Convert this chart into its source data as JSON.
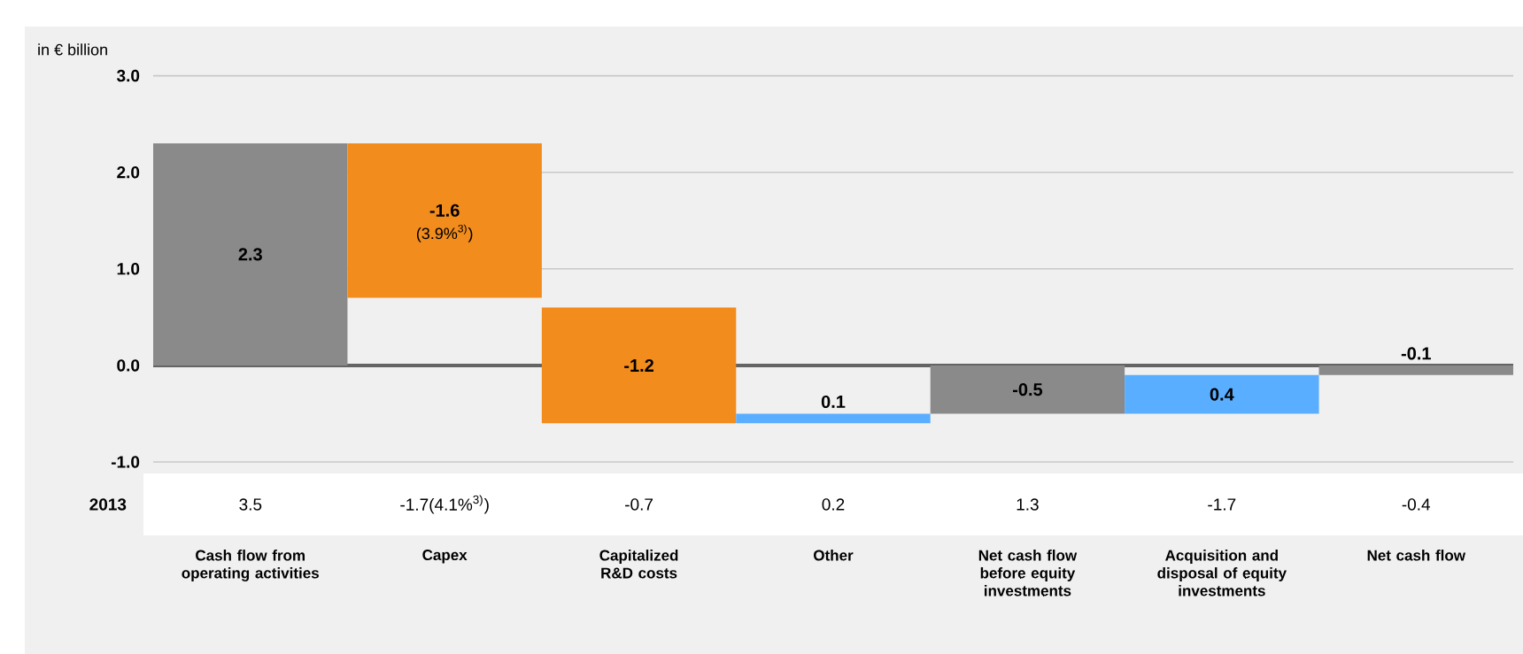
{
  "chart_data": {
    "type": "bar",
    "ylabel": "in € billion",
    "categories": [
      "Cash flow from operating activities",
      "Capex",
      "Capitalized R&D costs",
      "Other",
      "Net cash flow before equity investments",
      "Acquisition and disposal of equity investments",
      "Net cash flow"
    ],
    "values": [
      2.3,
      -1.6,
      -1.2,
      0.1,
      -0.5,
      0.4,
      -0.1
    ],
    "base": [
      0,
      2.3,
      0.6,
      -0.6,
      0,
      -0.5,
      0
    ],
    "colors": [
      "#8a8a8a",
      "#f28c1c",
      "#f28c1c",
      "#5aaeff",
      "#8a8a8a",
      "#5aaeff",
      "#8a8a8a"
    ],
    "data_labels": true,
    "ylim": [
      -1.0,
      3.0
    ],
    "yticks": [
      {
        "value": -1.0,
        "label": "-1.0"
      },
      {
        "value": 0.0,
        "label": "0.0"
      },
      {
        "value": 1.0,
        "label": "1.0"
      },
      {
        "value": 2.0,
        "label": "2.0"
      },
      {
        "value": 3.0,
        "label": "3.0"
      }
    ],
    "grid": "y",
    "annotations": [
      "2013",
      "3.5",
      "-1.7(4.1%$^{3)}$)",
      "-0.7",
      "0.2",
      "1.3",
      "-1.7",
      "-0.4",
      "(3.9%$^{3)}$)"
    ]
  }
}
